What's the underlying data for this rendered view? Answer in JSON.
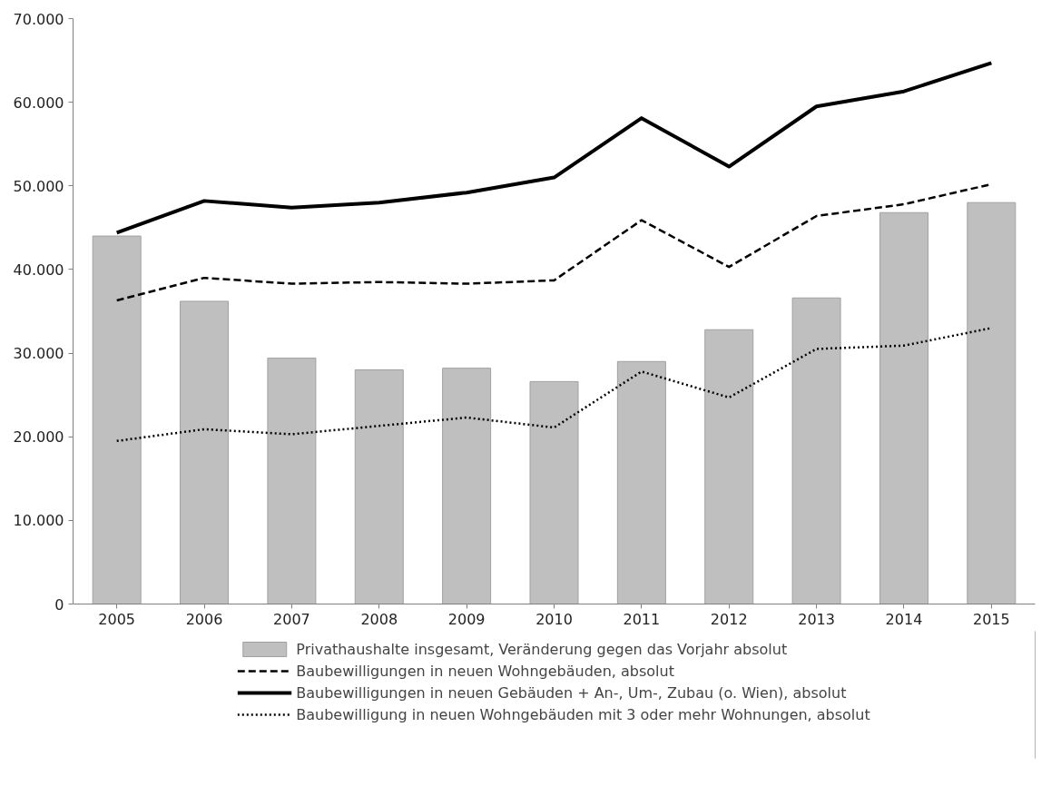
{
  "chart_data": {
    "type": "bar",
    "categories": [
      "2005",
      "2006",
      "2007",
      "2008",
      "2009",
      "2010",
      "2011",
      "2012",
      "2013",
      "2014",
      "2015"
    ],
    "ylim": [
      0,
      70000
    ],
    "yticks": [
      {
        "value": 0,
        "label": "0"
      },
      {
        "value": 10000,
        "label": "10.000"
      },
      {
        "value": 20000,
        "label": "20.000"
      },
      {
        "value": 30000,
        "label": "30.000"
      },
      {
        "value": 40000,
        "label": "40.000"
      },
      {
        "value": 50000,
        "label": "50.000"
      },
      {
        "value": 60000,
        "label": "60.000"
      },
      {
        "value": 70000,
        "label": "70.000"
      }
    ],
    "grid": false,
    "legend": "bottom",
    "series": [
      {
        "name": "Privathaushalte insgesamt, Veränderung gegen das Vorjahr absolut",
        "color": "#bfbfbf",
        "values": [
          44000,
          36200,
          29400,
          28000,
          28200,
          26600,
          29000,
          32800,
          36600,
          46800,
          48000
        ]
      },
      {
        "name": "Baubewilligungen in neuen Wohngebäuden, absolut",
        "type": "line",
        "line_style": "dashed",
        "color": "#000000",
        "values": [
          36300,
          39000,
          38300,
          38500,
          38300,
          38700,
          45900,
          40300,
          46400,
          47800,
          50200
        ]
      },
      {
        "name": "Baubewilligungen in neuen Gebäuden + An-, Um-, Zubau (o. Wien), absolut",
        "type": "line",
        "line_style": "solid",
        "color": "#000000",
        "values": [
          44400,
          48200,
          47400,
          48000,
          49200,
          51000,
          58100,
          52300,
          59500,
          61300,
          64700
        ]
      },
      {
        "name": "Baubewilligung in neuen Wohngebäuden mit 3 oder mehr Wohnungen, absolut",
        "type": "line",
        "line_style": "dotted",
        "color": "#000000",
        "values": [
          19500,
          20900,
          20300,
          21300,
          22300,
          21100,
          27800,
          24700,
          30500,
          30900,
          33000
        ]
      }
    ]
  }
}
